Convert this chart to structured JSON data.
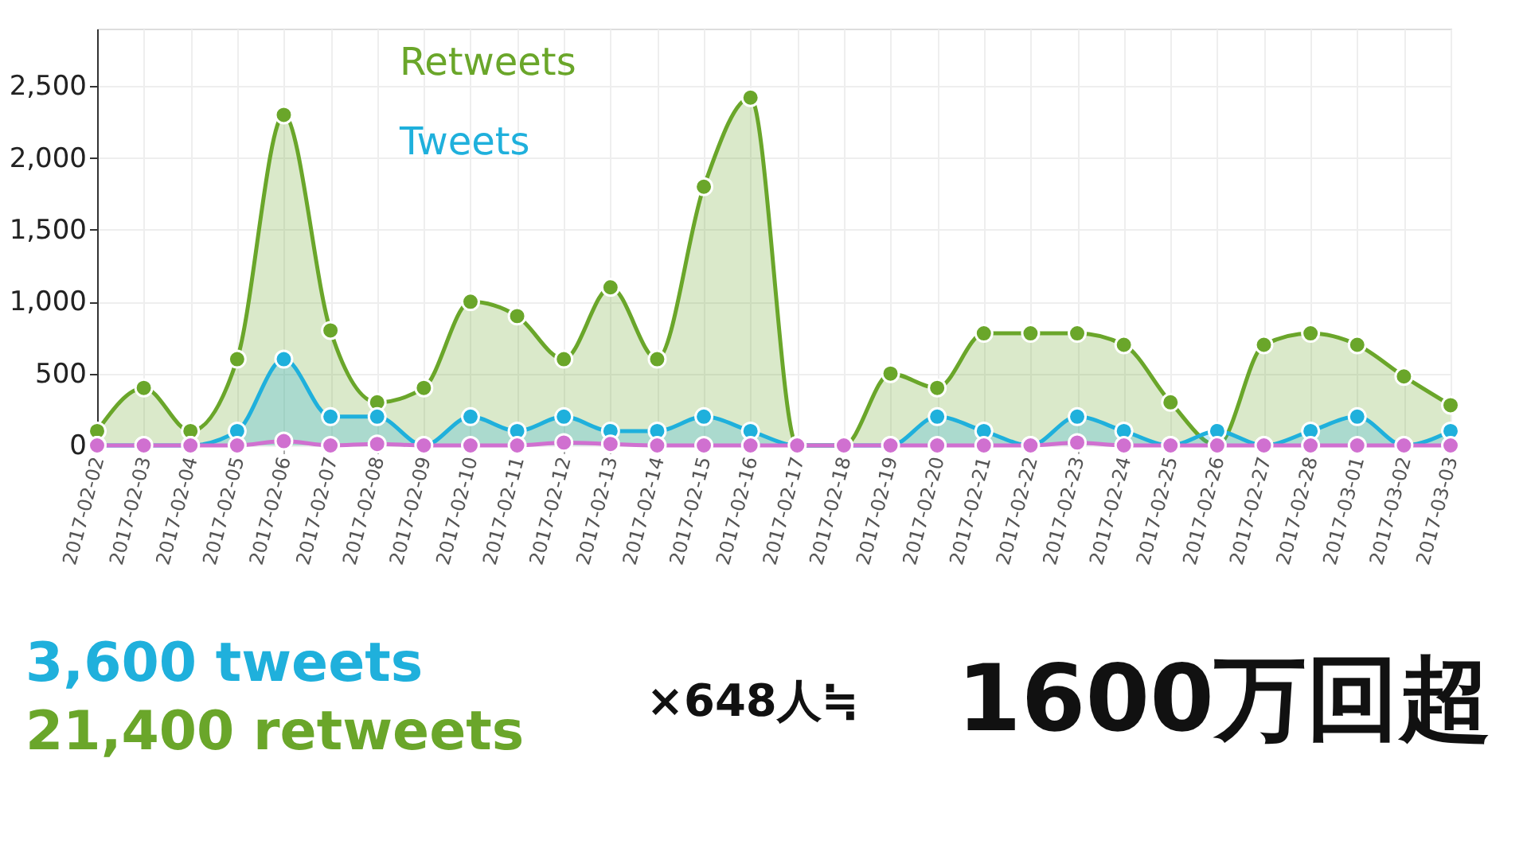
{
  "chart_data": {
    "type": "area",
    "categories": [
      "2017-02-02",
      "2017-02-03",
      "2017-02-04",
      "2017-02-05",
      "2017-02-06",
      "2017-02-07",
      "2017-02-08",
      "2017-02-09",
      "2017-02-10",
      "2017-02-11",
      "2017-02-12",
      "2017-02-13",
      "2017-02-14",
      "2017-02-15",
      "2017-02-16",
      "2017-02-17",
      "2017-02-18",
      "2017-02-19",
      "2017-02-20",
      "2017-02-21",
      "2017-02-22",
      "2017-02-23",
      "2017-02-24",
      "2017-02-25",
      "2017-02-26",
      "2017-02-27",
      "2017-02-28",
      "2017-03-01",
      "2017-03-02",
      "2017-03-03"
    ],
    "series": [
      {
        "name": "Retweets",
        "color": "#6aa62a",
        "values": [
          100,
          400,
          100,
          600,
          2300,
          800,
          300,
          400,
          1000,
          900,
          600,
          1100,
          600,
          1800,
          2420,
          0,
          0,
          500,
          400,
          780,
          780,
          780,
          700,
          300,
          0,
          700,
          780,
          700,
          480,
          280
        ]
      },
      {
        "name": "Tweets",
        "color": "#1fb0dc",
        "values": [
          0,
          0,
          0,
          100,
          600,
          200,
          200,
          0,
          200,
          100,
          200,
          100,
          100,
          200,
          100,
          0,
          0,
          0,
          200,
          100,
          0,
          200,
          100,
          0,
          100,
          0,
          100,
          200,
          0,
          100
        ]
      },
      {
        "type": "line",
        "color": "#d070d0",
        "values": [
          0,
          0,
          0,
          0,
          30,
          0,
          10,
          0,
          0,
          0,
          20,
          10,
          0,
          0,
          0,
          0,
          0,
          0,
          0,
          0,
          0,
          20,
          0,
          0,
          0,
          0,
          0,
          0,
          0,
          0
        ]
      }
    ],
    "ylim": [
      0,
      2900
    ],
    "yticks": [
      0,
      500,
      {
        "value": 1000,
        "label": "1,000"
      },
      {
        "value": 1500,
        "label": "1,500"
      },
      {
        "value": 2000,
        "label": "2,000"
      },
      {
        "value": 2500,
        "label": "2,500"
      }
    ],
    "grid": true,
    "marker": "circle",
    "annotations": [
      "3,600 tweets",
      "21,400 retweets",
      "×648人≒",
      "1600万回超"
    ]
  }
}
